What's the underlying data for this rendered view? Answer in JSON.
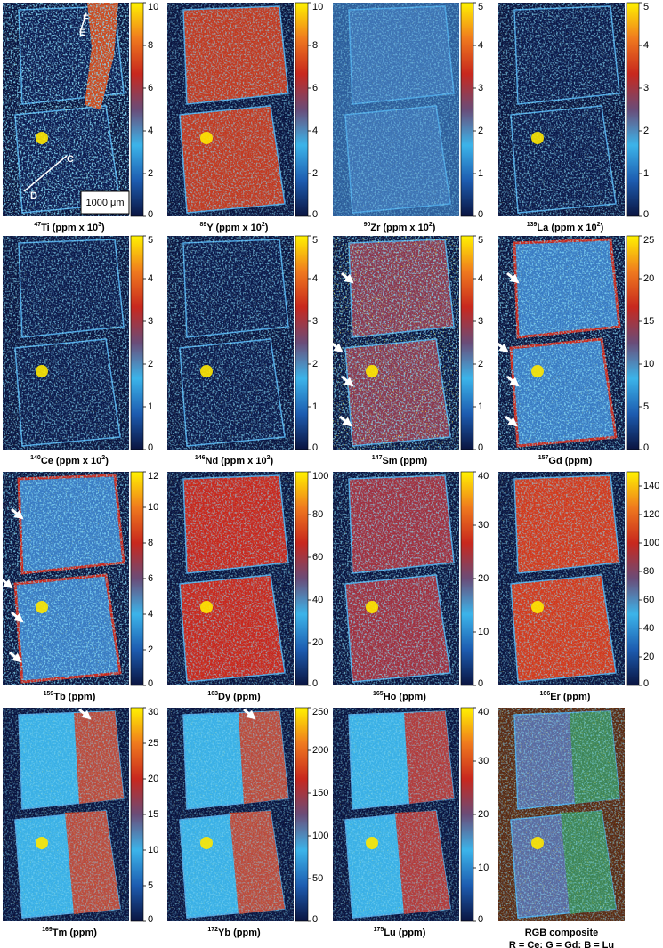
{
  "chart_data": [
    {
      "type": "heatmap",
      "title": [
        {
          "text": "47",
          "sup": true
        },
        {
          "text": "Ti (ppm x 10"
        },
        {
          "text": "3",
          "sup": true
        },
        {
          "text": ")"
        }
      ],
      "zlim": [
        0,
        10
      ],
      "zticks": [
        0,
        2,
        4,
        6,
        8,
        10
      ],
      "colorscale": [
        "#0a1440",
        "#1d5cb0",
        "#3cb4ea",
        "#6a4c78",
        "#c8281e",
        "#f07a1e",
        "#fff200"
      ],
      "annotations": [
        "F",
        "E",
        "C",
        "D",
        "1000 μm"
      ]
    },
    {
      "type": "heatmap",
      "title": [
        {
          "text": "89",
          "sup": true
        },
        {
          "text": "Y (ppm x 10"
        },
        {
          "text": "2",
          "sup": true
        },
        {
          "text": ")"
        }
      ],
      "zlim": [
        0,
        10
      ],
      "zticks": [
        0,
        2,
        4,
        6,
        8,
        10
      ],
      "colorscale": [
        "#0a1440",
        "#1d5cb0",
        "#3cb4ea",
        "#6a4c78",
        "#c8281e",
        "#f07a1e",
        "#fff200"
      ]
    },
    {
      "type": "heatmap",
      "title": [
        {
          "text": "90",
          "sup": true
        },
        {
          "text": "Zr (ppm x 10"
        },
        {
          "text": "2",
          "sup": true
        },
        {
          "text": ")"
        }
      ],
      "zlim": [
        0,
        5
      ],
      "zticks": [
        0,
        1,
        2,
        3,
        4,
        5
      ],
      "colorscale": [
        "#0a1440",
        "#1d5cb0",
        "#3cb4ea",
        "#6a4c78",
        "#c8281e",
        "#f07a1e",
        "#fff200"
      ]
    },
    {
      "type": "heatmap",
      "title": [
        {
          "text": "139",
          "sup": true
        },
        {
          "text": "La (ppm x 10"
        },
        {
          "text": "2",
          "sup": true
        },
        {
          "text": ")"
        }
      ],
      "zlim": [
        0,
        5
      ],
      "zticks": [
        0,
        1,
        2,
        3,
        4,
        5
      ],
      "colorscale": [
        "#0a1440",
        "#1d5cb0",
        "#3cb4ea",
        "#6a4c78",
        "#c8281e",
        "#f07a1e",
        "#fff200"
      ]
    },
    {
      "type": "heatmap",
      "title": [
        {
          "text": "140",
          "sup": true
        },
        {
          "text": "Ce (ppm x 10"
        },
        {
          "text": "2",
          "sup": true
        },
        {
          "text": ")"
        }
      ],
      "zlim": [
        0,
        5
      ],
      "zticks": [
        0,
        1,
        2,
        3,
        4,
        5
      ],
      "colorscale": [
        "#0a1440",
        "#1d5cb0",
        "#3cb4ea",
        "#6a4c78",
        "#c8281e",
        "#f07a1e",
        "#fff200"
      ]
    },
    {
      "type": "heatmap",
      "title": [
        {
          "text": "146",
          "sup": true
        },
        {
          "text": "Nd (ppm x 10"
        },
        {
          "text": "2",
          "sup": true
        },
        {
          "text": ")"
        }
      ],
      "zlim": [
        0,
        5
      ],
      "zticks": [
        0,
        1,
        2,
        3,
        4,
        5
      ],
      "colorscale": [
        "#0a1440",
        "#1d5cb0",
        "#3cb4ea",
        "#6a4c78",
        "#c8281e",
        "#f07a1e",
        "#fff200"
      ]
    },
    {
      "type": "heatmap",
      "title": [
        {
          "text": "147",
          "sup": true
        },
        {
          "text": "Sm (ppm)"
        }
      ],
      "zlim": [
        0,
        5
      ],
      "zticks": [
        0,
        1,
        2,
        3,
        4,
        5
      ],
      "colorscale": [
        "#0a1440",
        "#1d5cb0",
        "#3cb4ea",
        "#6a4c78",
        "#c8281e",
        "#f07a1e",
        "#fff200"
      ]
    },
    {
      "type": "heatmap",
      "title": [
        {
          "text": "157",
          "sup": true
        },
        {
          "text": "Gd (ppm)"
        }
      ],
      "zlim": [
        0,
        25
      ],
      "zticks": [
        0,
        5,
        10,
        15,
        20,
        25
      ],
      "colorscale": [
        "#0a1440",
        "#1d5cb0",
        "#3cb4ea",
        "#6a4c78",
        "#c8281e",
        "#f07a1e",
        "#fff200"
      ]
    },
    {
      "type": "heatmap",
      "title": [
        {
          "text": "159",
          "sup": true
        },
        {
          "text": "Tb (ppm)"
        }
      ],
      "zlim": [
        0,
        12
      ],
      "zticks": [
        0,
        2,
        4,
        6,
        8,
        10,
        12
      ],
      "colorscale": [
        "#0a1440",
        "#1d5cb0",
        "#3cb4ea",
        "#6a4c78",
        "#c8281e",
        "#f07a1e",
        "#fff200"
      ]
    },
    {
      "type": "heatmap",
      "title": [
        {
          "text": "163",
          "sup": true
        },
        {
          "text": "Dy (ppm)"
        }
      ],
      "zlim": [
        0,
        100
      ],
      "zticks": [
        0,
        20,
        40,
        60,
        80,
        100
      ],
      "colorscale": [
        "#0a1440",
        "#1d5cb0",
        "#3cb4ea",
        "#6a4c78",
        "#c8281e",
        "#f07a1e",
        "#fff200"
      ]
    },
    {
      "type": "heatmap",
      "title": [
        {
          "text": "165",
          "sup": true
        },
        {
          "text": "Ho (ppm)"
        }
      ],
      "zlim": [
        0,
        40
      ],
      "zticks": [
        0,
        10,
        20,
        30,
        40
      ],
      "colorscale": [
        "#0a1440",
        "#1d5cb0",
        "#3cb4ea",
        "#6a4c78",
        "#c8281e",
        "#f07a1e",
        "#fff200"
      ]
    },
    {
      "type": "heatmap",
      "title": [
        {
          "text": "166",
          "sup": true
        },
        {
          "text": "Er (ppm)"
        }
      ],
      "zlim": [
        0,
        150
      ],
      "zticks": [
        0,
        20,
        40,
        60,
        80,
        100,
        120,
        140
      ],
      "colorscale": [
        "#0a1440",
        "#1d5cb0",
        "#3cb4ea",
        "#6a4c78",
        "#c8281e",
        "#f07a1e",
        "#fff200"
      ]
    },
    {
      "type": "heatmap",
      "title": [
        {
          "text": "169",
          "sup": true
        },
        {
          "text": "Tm (ppm)"
        }
      ],
      "zlim": [
        0,
        30
      ],
      "zticks": [
        0,
        5,
        10,
        15,
        20,
        25,
        30
      ],
      "colorscale": [
        "#0a1440",
        "#1d5cb0",
        "#3cb4ea",
        "#6a4c78",
        "#c8281e",
        "#f07a1e",
        "#fff200"
      ]
    },
    {
      "type": "heatmap",
      "title": [
        {
          "text": "172",
          "sup": true
        },
        {
          "text": "Yb (ppm)"
        }
      ],
      "zlim": [
        0,
        250
      ],
      "zticks": [
        0,
        50,
        100,
        150,
        200,
        250
      ],
      "colorscale": [
        "#0a1440",
        "#1d5cb0",
        "#3cb4ea",
        "#6a4c78",
        "#c8281e",
        "#f07a1e",
        "#fff200"
      ]
    },
    {
      "type": "heatmap",
      "title": [
        {
          "text": "175",
          "sup": true
        },
        {
          "text": "Lu (ppm)"
        }
      ],
      "zlim": [
        0,
        40
      ],
      "zticks": [
        0,
        10,
        20,
        30,
        40
      ],
      "colorscale": [
        "#0a1440",
        "#1d5cb0",
        "#3cb4ea",
        "#6a4c78",
        "#c8281e",
        "#f07a1e",
        "#fff200"
      ]
    },
    {
      "type": "image",
      "title": "RGB composite",
      "subtitle": "R = Ce; G = Gd; B = Lu"
    }
  ]
}
